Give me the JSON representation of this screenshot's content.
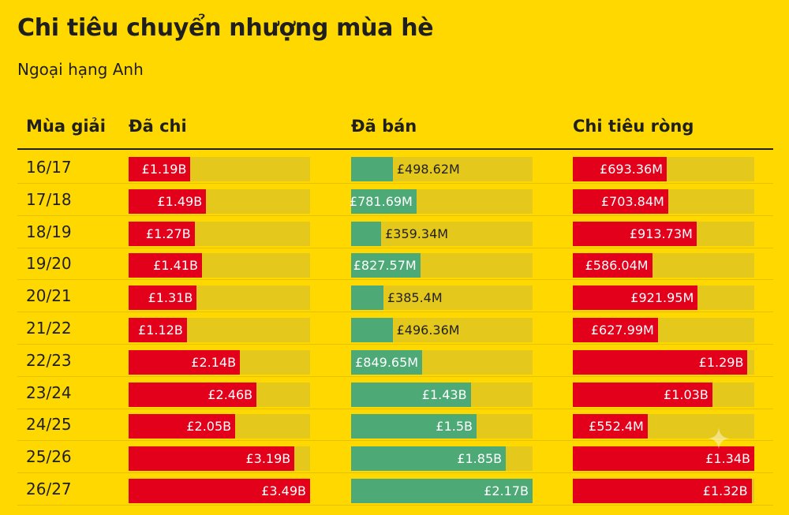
{
  "title": "Chi tiêu chuyển nhượng mùa hè",
  "subtitle": "Ngoại hạng Anh",
  "columns": {
    "season": "Mùa giải",
    "spent": "Đã chi",
    "sold": "Đã bán",
    "net": "Chi tiêu ròng"
  },
  "colors": {
    "background": "#FFD800",
    "spent": "#E3001B",
    "sold": "#4DAA77",
    "net": "#E3001B",
    "track": "#E4C81B"
  },
  "chart_data": {
    "type": "bar",
    "categories": [
      "16/17",
      "17/18",
      "18/19",
      "19/20",
      "20/21",
      "21/22",
      "22/23",
      "23/24",
      "24/25",
      "25/26",
      "26/27"
    ],
    "series": [
      {
        "name": "Đã chi",
        "values": [
          1.19,
          1.49,
          1.27,
          1.41,
          1.31,
          1.12,
          2.14,
          2.46,
          2.05,
          3.19,
          3.49
        ],
        "labels": [
          "£1.19B",
          "£1.49B",
          "£1.27B",
          "£1.41B",
          "£1.31B",
          "£1.12B",
          "£2.14B",
          "£2.46B",
          "£2.05B",
          "£3.19B",
          "£3.49B"
        ],
        "max": 3.49,
        "unit": "£B"
      },
      {
        "name": "Đã bán",
        "values": [
          0.49862,
          0.78169,
          0.35934,
          0.82757,
          0.3854,
          0.49636,
          0.84965,
          1.43,
          1.5,
          1.85,
          2.17
        ],
        "labels": [
          "£498.62M",
          "£781.69M",
          "£359.34M",
          "£827.57M",
          "£385.4M",
          "£496.36M",
          "£849.65M",
          "£1.43B",
          "£1.5B",
          "£1.85B",
          "£2.17B"
        ],
        "max": 2.17,
        "unit": "£B"
      },
      {
        "name": "Chi tiêu ròng",
        "values": [
          0.69336,
          0.70384,
          0.91373,
          0.58604,
          0.92195,
          0.62799,
          1.29,
          1.03,
          0.5524,
          1.34,
          1.32
        ],
        "labels": [
          "£693.36M",
          "£703.84M",
          "£913.73M",
          "£586.04M",
          "£921.95M",
          "£627.99M",
          "£1.29B",
          "£1.03B",
          "£552.4M",
          "£1.34B",
          "£1.32B"
        ],
        "max": 1.34,
        "unit": "£B"
      }
    ]
  }
}
